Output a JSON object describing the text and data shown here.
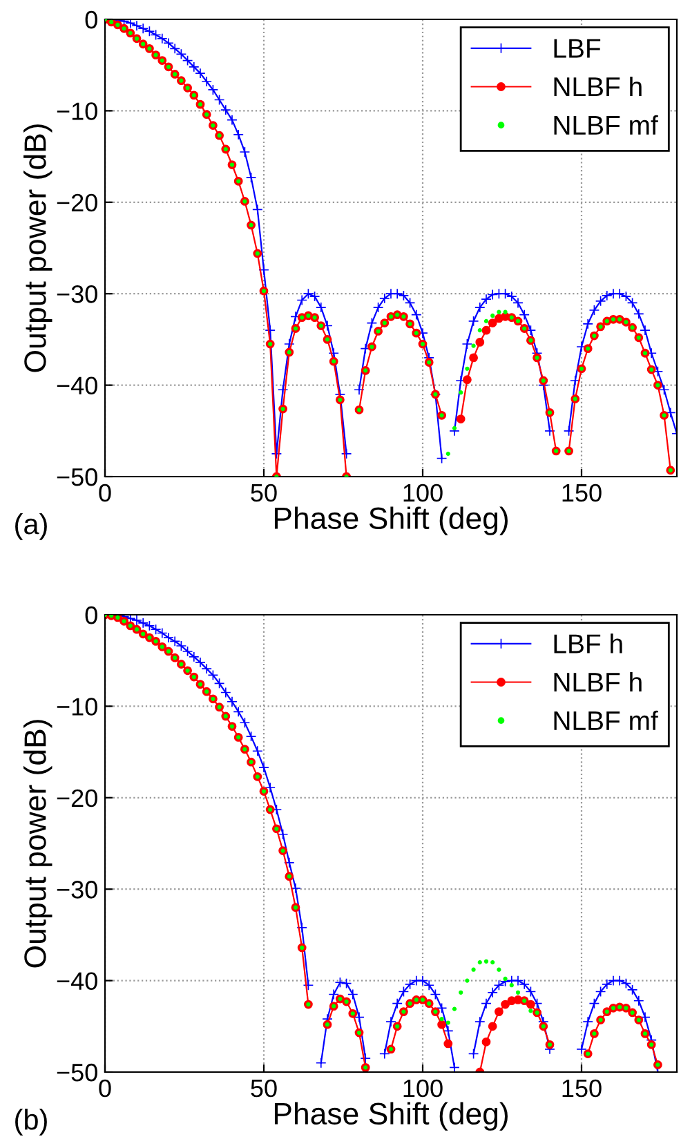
{
  "chart_data": [
    {
      "type": "line",
      "xlabel": "Phase Shift (deg)",
      "ylabel": "Output power (dB)",
      "annotations": [
        "(a)"
      ],
      "x": [
        0,
        2,
        4,
        6,
        8,
        10,
        12,
        14,
        16,
        18,
        20,
        22,
        24,
        26,
        28,
        30,
        32,
        34,
        36,
        38,
        40,
        42,
        44,
        46,
        48,
        50,
        52,
        54,
        56,
        58,
        60,
        62,
        64,
        66,
        68,
        70,
        72,
        74,
        76,
        78,
        80,
        82,
        84,
        86,
        88,
        90,
        92,
        94,
        96,
        98,
        100,
        102,
        104,
        106,
        108,
        110,
        112,
        114,
        116,
        118,
        120,
        122,
        124,
        126,
        128,
        130,
        132,
        134,
        136,
        138,
        140,
        142,
        144,
        146,
        148,
        150,
        152,
        154,
        156,
        158,
        160,
        162,
        164,
        166,
        168,
        170,
        172,
        174,
        176,
        178,
        180
      ],
      "xlim": [
        0,
        180
      ],
      "xticks": [
        0,
        50,
        100,
        150
      ],
      "ylim": [
        -50,
        0
      ],
      "yticks": [
        -50,
        -40,
        -30,
        -20,
        -10,
        0
      ],
      "grid": true,
      "legend": "top right",
      "series": [
        {
          "name": "LBF",
          "color": "#0000ff",
          "marker": "cross",
          "line_style": "solid",
          "values": [
            0,
            0,
            -0.1,
            -0.2,
            -0.4,
            -0.7,
            -1.0,
            -1.3,
            -1.7,
            -2.1,
            -2.6,
            -3.2,
            -3.8,
            -4.5,
            -5.2,
            -5.9,
            -6.8,
            -7.7,
            -8.8,
            -9.9,
            -11.0,
            -12.6,
            -14.5,
            -17.3,
            -20.8,
            -27.4,
            -34.0,
            -47.5,
            -40.5,
            -35.5,
            -32.5,
            -30.7,
            -30.0,
            -30.3,
            -31.5,
            -33.5,
            -36.5,
            -41.0,
            -47.5,
            null,
            -40.5,
            -36.0,
            -33.2,
            -31.5,
            -30.5,
            -30.0,
            -30.0,
            -30.2,
            -31.0,
            -32.3,
            -34.3,
            -37.0,
            -41.0,
            -48.0,
            null,
            -45.0,
            -39.5,
            -35.5,
            -33.0,
            -31.5,
            -30.6,
            -30.1,
            -30.0,
            -30.0,
            -30.3,
            -31.0,
            -32.3,
            -34.0,
            -36.5,
            -40.0,
            -45.0,
            null,
            null,
            -45.0,
            -39.5,
            -35.8,
            -33.3,
            -31.8,
            -30.8,
            -30.2,
            -30.0,
            -30.0,
            -30.3,
            -31.0,
            -32.2,
            -34.0,
            -36.5,
            -38.5,
            -40.5,
            -43.0,
            -45.3
          ]
        },
        {
          "name": "NLBF h",
          "color": "#ff0000",
          "marker": "circle",
          "line_style": "solid",
          "values": [
            0,
            -0.3,
            -0.6,
            -1.0,
            -1.5,
            -2.1,
            -2.7,
            -3.2,
            -3.9,
            -4.5,
            -5.2,
            -6.0,
            -6.7,
            -7.5,
            -8.3,
            -9.3,
            -10.4,
            -11.6,
            -12.7,
            -14.2,
            -15.9,
            -17.7,
            -19.9,
            -22.5,
            -25.6,
            -29.7,
            -35.5,
            -50,
            -42.6,
            -36.4,
            -33.8,
            -32.6,
            -32.4,
            -32.6,
            -33.5,
            -35.0,
            -37.4,
            -41.6,
            -50,
            null,
            -42.7,
            -38.4,
            -35.8,
            -34.1,
            -33.2,
            -32.5,
            -32.3,
            -32.5,
            -33.3,
            -34.3,
            -35.5,
            -37.5,
            -41.0,
            -43.3,
            null,
            null,
            -43.7,
            -39.4,
            -37.0,
            -35.3,
            -34.0,
            -33.2,
            -32.7,
            -32.5,
            -32.6,
            -33.0,
            -33.8,
            -35.1,
            -37.0,
            -39.5,
            -43.0,
            -47.2,
            null,
            -47.2,
            -41.5,
            -38.2,
            -36.0,
            -34.6,
            -33.6,
            -33.0,
            -32.8,
            -32.8,
            -33.1,
            -33.7,
            -34.8,
            -36.5,
            -38.3,
            -40.0,
            -43.3,
            -49.3,
            null
          ]
        },
        {
          "name": "NLBF mf",
          "type": "scatter",
          "color": "#00ff00",
          "marker": "circle",
          "values": [
            0,
            -0.3,
            -0.6,
            -1.0,
            -1.5,
            -2.1,
            -2.7,
            -3.2,
            -3.9,
            -4.5,
            -5.2,
            -6.0,
            -6.7,
            -7.5,
            -8.3,
            -9.3,
            -10.4,
            -11.6,
            -12.7,
            -14.2,
            -15.9,
            -17.7,
            -19.9,
            -22.5,
            -25.6,
            -29.7,
            -35.5,
            -50,
            -42.6,
            -36.4,
            -33.8,
            -32.6,
            -32.4,
            -32.6,
            -33.5,
            -35.0,
            -37.4,
            -41.6,
            -50,
            null,
            -42.7,
            -38.4,
            -35.8,
            -34.1,
            -33.2,
            -32.5,
            -32.3,
            -32.5,
            -33.3,
            -34.3,
            -35.5,
            -37.5,
            -41.0,
            -43.3,
            -47.5,
            -44.7,
            -40.8,
            -38.2,
            -35.7,
            -34.0,
            -33.0,
            -32.4,
            -32.0,
            -32.0,
            -32.6,
            -33.0,
            -33.8,
            -35.1,
            -37.0,
            -39.5,
            -43.0,
            -47.2,
            null,
            -47.2,
            -41.5,
            -38.2,
            -36.0,
            -34.6,
            -33.6,
            -33.0,
            -32.8,
            -32.8,
            -33.1,
            -33.7,
            -34.8,
            -36.5,
            -38.3,
            -40.0,
            -43.3,
            -49.3,
            null
          ]
        }
      ]
    },
    {
      "type": "line",
      "xlabel": "Phase Shift (deg)",
      "ylabel": "Output power (dB)",
      "annotations": [
        "(b)"
      ],
      "x": [
        0,
        2,
        4,
        6,
        8,
        10,
        12,
        14,
        16,
        18,
        20,
        22,
        24,
        26,
        28,
        30,
        32,
        34,
        36,
        38,
        40,
        42,
        44,
        46,
        48,
        50,
        52,
        54,
        56,
        58,
        60,
        62,
        64,
        66,
        68,
        70,
        72,
        74,
        76,
        78,
        80,
        82,
        84,
        86,
        88,
        90,
        92,
        94,
        96,
        98,
        100,
        102,
        104,
        106,
        108,
        110,
        112,
        114,
        116,
        118,
        120,
        122,
        124,
        126,
        128,
        130,
        132,
        134,
        136,
        138,
        140,
        142,
        144,
        146,
        148,
        150,
        152,
        154,
        156,
        158,
        160,
        162,
        164,
        166,
        168,
        170,
        172,
        174
      ],
      "xlim": [
        0,
        180
      ],
      "xticks": [
        0,
        50,
        100,
        150
      ],
      "ylim": [
        -50,
        0
      ],
      "yticks": [
        -50,
        -40,
        -30,
        -20,
        -10,
        0
      ],
      "grid": true,
      "legend": "top right",
      "series": [
        {
          "name": "LBF h",
          "color": "#0000ff",
          "marker": "cross",
          "line_style": "solid",
          "values": [
            0,
            0,
            0,
            -0.2,
            -0.4,
            -0.6,
            -0.9,
            -1.2,
            -1.6,
            -2.0,
            -2.5,
            -2.9,
            -3.4,
            -4.0,
            -4.6,
            -5.2,
            -5.9,
            -6.6,
            -7.5,
            -8.5,
            -9.5,
            -10.6,
            -11.8,
            -13.3,
            -14.9,
            -16.7,
            -18.9,
            -21.3,
            -24.0,
            -27.1,
            -29.9,
            -34.2,
            -40.5,
            null,
            -49.0,
            -44.2,
            -41.5,
            -40.2,
            -40.3,
            -41.5,
            -44.0,
            -48.5,
            null,
            null,
            -48.0,
            -44.5,
            -42.5,
            -41.2,
            -40.4,
            -40.0,
            -40.0,
            -40.5,
            -41.5,
            -43.0,
            -45.5,
            -49.5,
            null,
            null,
            -48.0,
            -44.5,
            -42.5,
            -41.3,
            -40.5,
            -40.1,
            -40.0,
            -40.0,
            -40.4,
            -41.2,
            -42.5,
            -44.5,
            -47.5,
            null,
            null,
            null,
            null,
            -47.5,
            -44.5,
            -42.5,
            -41.2,
            -40.4,
            -40.0,
            -40.0,
            -40.3,
            -41.0,
            -42.2,
            -44.0,
            -46.5,
            -50
          ]
        },
        {
          "name": "NLBF h",
          "color": "#ff0000",
          "marker": "circle",
          "line_style": "solid",
          "values": [
            0,
            -0.1,
            -0.3,
            -0.7,
            -1.2,
            -1.6,
            -2.1,
            -2.5,
            -2.9,
            -3.5,
            -4.0,
            -4.7,
            -5.4,
            -6.1,
            -6.8,
            -7.6,
            -8.4,
            -9.2,
            -10.1,
            -11.1,
            -12.2,
            -13.4,
            -14.7,
            -16.1,
            -17.7,
            -19.3,
            -21.3,
            -23.4,
            -25.8,
            -28.6,
            -32.0,
            -36.4,
            -42.6,
            null,
            null,
            -44.8,
            -42.8,
            -42.0,
            -42.3,
            -43.6,
            -45.7,
            -49.5,
            null,
            null,
            null,
            -47.5,
            -45.0,
            -43.4,
            -42.5,
            -42.1,
            -42.1,
            -42.5,
            -43.4,
            -44.8,
            -46.9,
            null,
            null,
            null,
            null,
            -50,
            -46.7,
            -45.0,
            -43.4,
            -42.6,
            -42.2,
            -42.1,
            -42.2,
            -42.6,
            -43.5,
            -45.0,
            -47.0,
            null,
            null,
            null,
            null,
            null,
            -48.0,
            -45.8,
            -44.3,
            -43.4,
            -43.0,
            -42.9,
            -43.0,
            -43.5,
            -44.3,
            -45.8,
            -47.0,
            -49.2
          ]
        },
        {
          "name": "NLBF mf",
          "type": "scatter",
          "color": "#00ff00",
          "marker": "circle",
          "values": [
            0,
            -0.1,
            -0.3,
            -0.7,
            -1.2,
            -1.6,
            -2.1,
            -2.5,
            -2.9,
            -3.5,
            -4.0,
            -4.7,
            -5.4,
            -6.1,
            -6.8,
            -7.6,
            -8.4,
            -9.2,
            -10.1,
            -11.1,
            -12.2,
            -13.4,
            -14.7,
            -16.1,
            -17.7,
            -19.3,
            -21.3,
            -23.4,
            -25.8,
            -28.6,
            -32.0,
            -36.4,
            -42.6,
            null,
            null,
            -44.8,
            -42.8,
            -42.0,
            -42.3,
            -43.6,
            -45.7,
            -49.5,
            null,
            null,
            null,
            -47.5,
            -45.0,
            -43.4,
            -42.5,
            -42.1,
            -42.1,
            -42.5,
            -43.4,
            -44.2,
            -44.6,
            -43.1,
            -41.3,
            -40.0,
            -38.8,
            -38.0,
            -37.9,
            -38.0,
            -38.8,
            -39.8,
            -40.5,
            -41.3,
            -42.2,
            -43.3,
            -43.5,
            -45.0,
            -47.0,
            null,
            null,
            null,
            null,
            null,
            -48.0,
            -45.8,
            -44.3,
            -43.4,
            -43.0,
            -42.9,
            -43.0,
            -43.5,
            -44.3,
            -45.8,
            -47.0,
            -49.2
          ]
        }
      ]
    }
  ]
}
